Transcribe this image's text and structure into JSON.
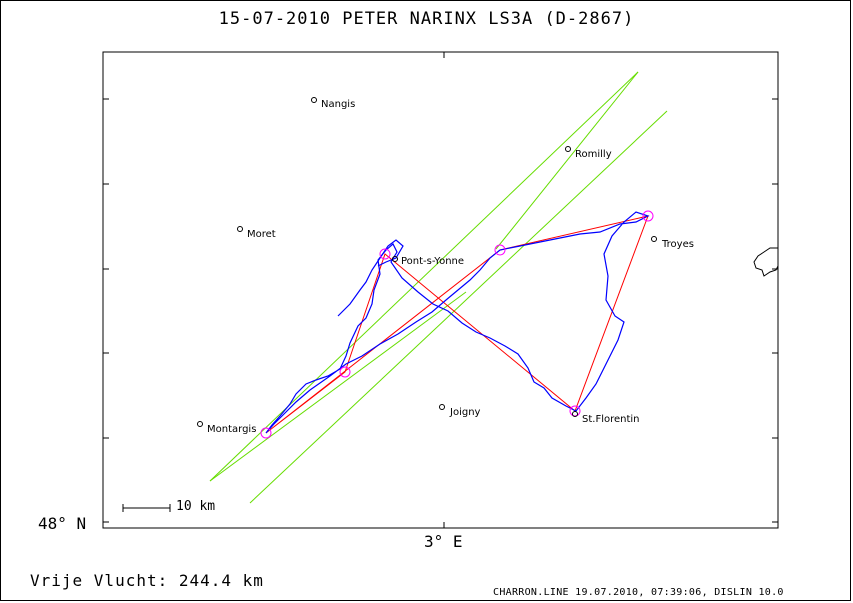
{
  "title": "15-07-2010   PETER NARINX   LS3A (D-2867)",
  "axes": {
    "lat_label": "48° N",
    "lon_label": "3° E"
  },
  "scale_bar": {
    "label": "10 km"
  },
  "distance_text": "Vrije Vlucht:  244.4 km",
  "footer": "CHARRON.LINE 19.07.2010, 07:39:06, DISLIN 10.0",
  "colors": {
    "track": "#0000ff",
    "route": "#ff0000",
    "sector": "#00cc00",
    "turnpoint": "#ff00ff"
  },
  "towns": [
    {
      "id": "nangis",
      "label": "Nangis"
    },
    {
      "id": "romilly",
      "label": "Romilly"
    },
    {
      "id": "moret",
      "label": "Moret"
    },
    {
      "id": "troyes",
      "label": "Troyes"
    },
    {
      "id": "pont",
      "label": "Pont-s-Yonne"
    },
    {
      "id": "montargis",
      "label": "Montargis"
    },
    {
      "id": "joigny",
      "label": "Joigny"
    },
    {
      "id": "florentin",
      "label": "St.Florentin"
    }
  ]
}
